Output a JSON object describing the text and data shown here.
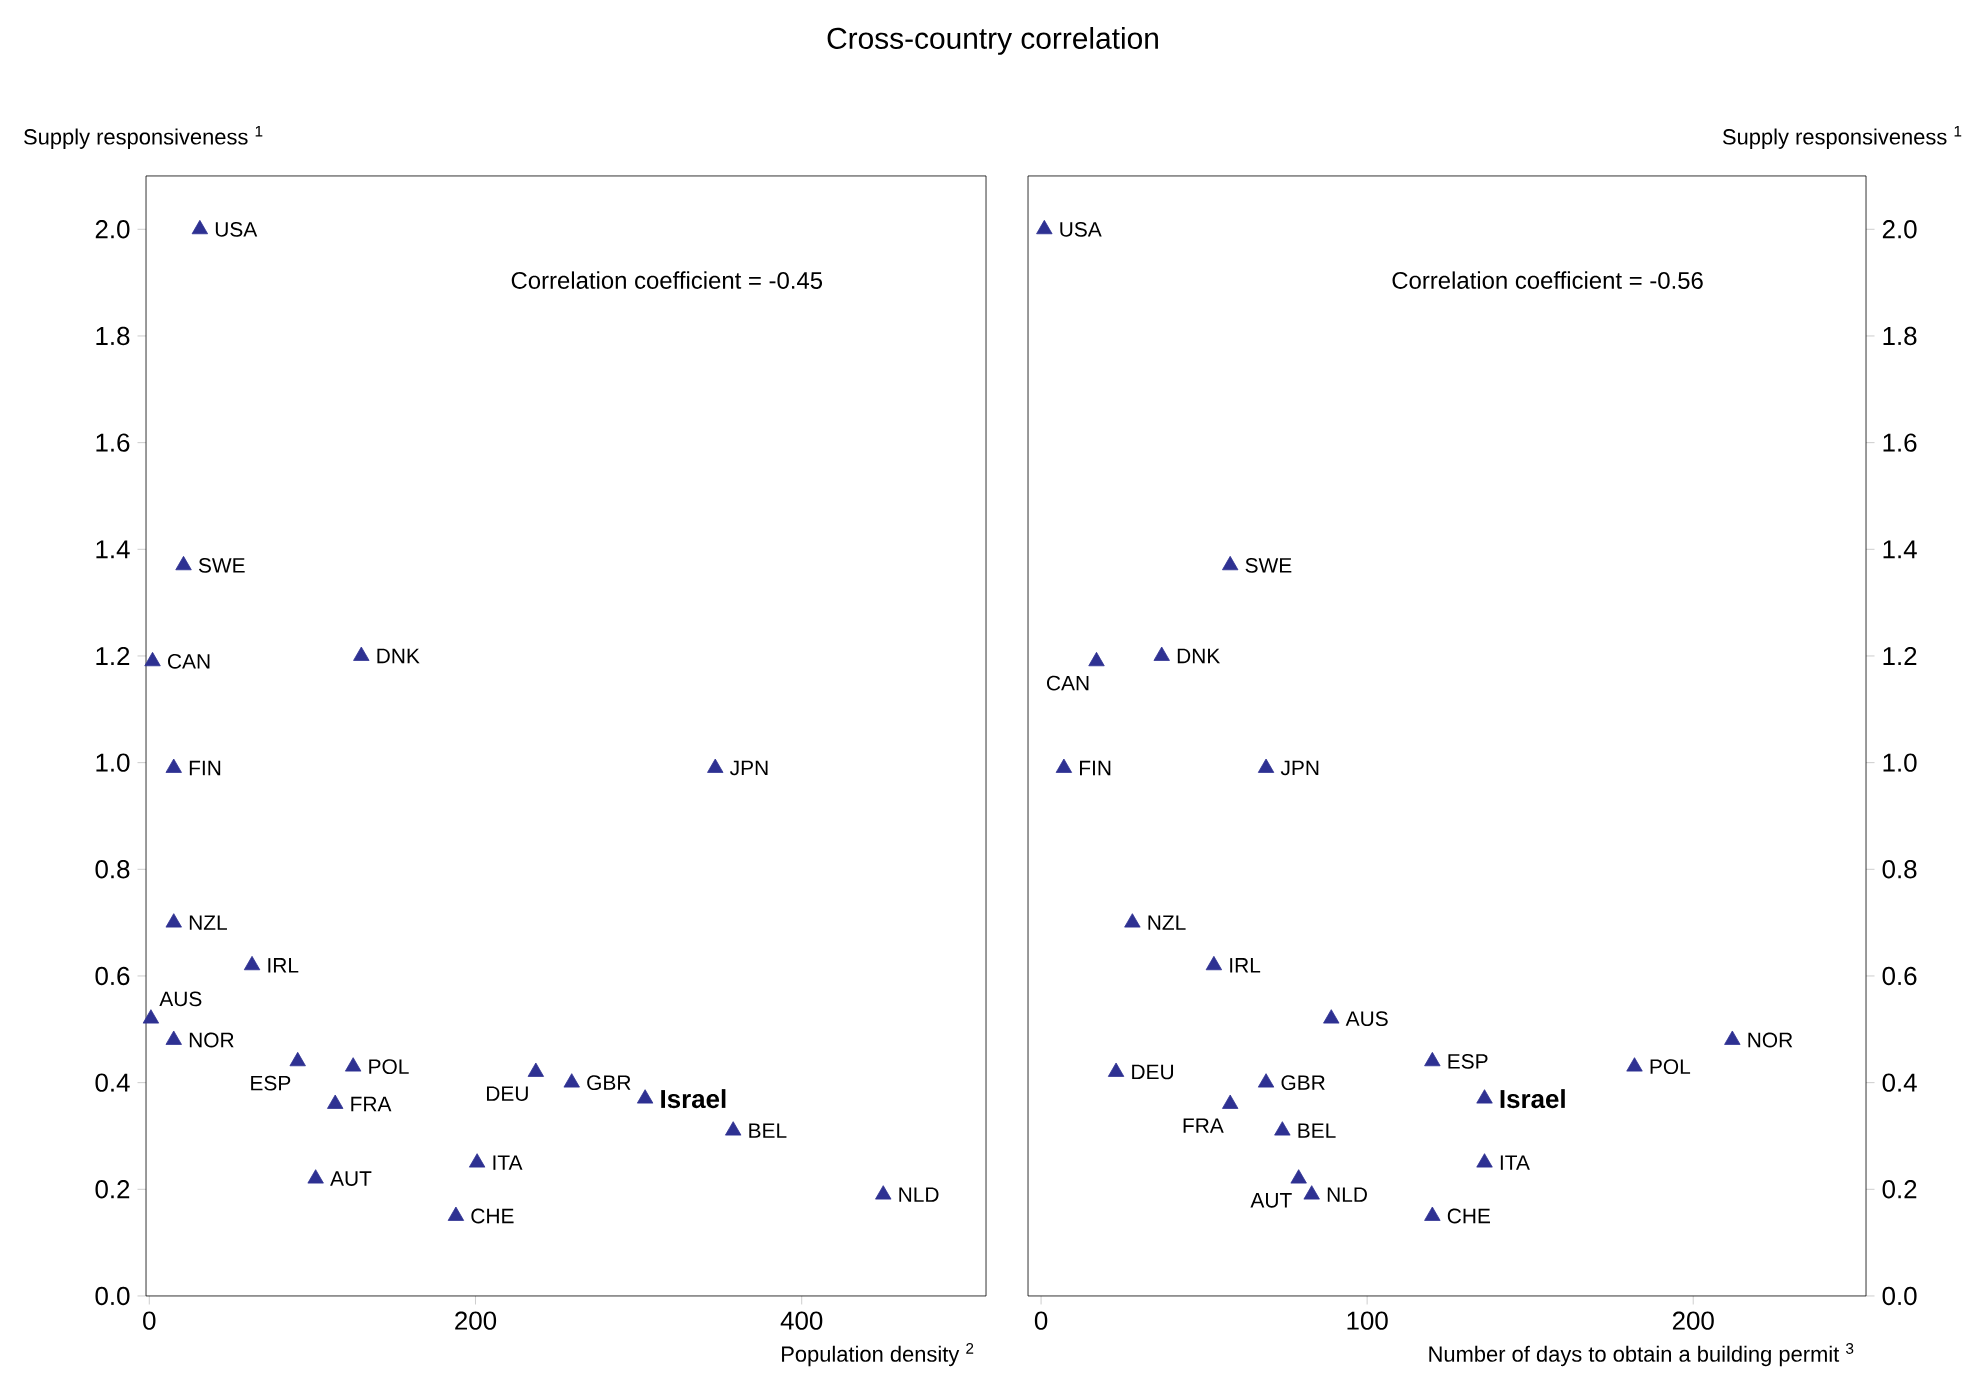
{
  "chart_data": [
    {
      "type": "scatter",
      "title": "Cross-country correlation",
      "ylabel": "Supply responsiveness $^{1}$",
      "xlabel": "Population density $^{2}$",
      "marker": "triangle",
      "xlim": [
        -2,
        513
      ],
      "ylim": [
        0,
        2.1
      ],
      "xticks": [
        0,
        200,
        400
      ],
      "yticks": [
        {
          "value": 0,
          "label": "0.0"
        },
        {
          "value": 0.2,
          "label": "0.2"
        },
        {
          "value": 0.4,
          "label": "0.4"
        },
        {
          "value": 0.6,
          "label": "0.6"
        },
        {
          "value": 0.8,
          "label": "0.8"
        },
        {
          "value": 1.0,
          "label": "1.0"
        },
        {
          "value": 1.2,
          "label": "1.2"
        },
        {
          "value": 1.4,
          "label": "1.4"
        },
        {
          "value": 1.6,
          "label": "1.6"
        },
        {
          "value": 1.8,
          "label": "1.8"
        },
        {
          "value": 2.0,
          "label": "2.0"
        }
      ],
      "series": [
        {
          "color": "#2e3192",
          "x": [
            31,
            21,
            2,
            130,
            15,
            347,
            15,
            63,
            1,
            15,
            91,
            125,
            114,
            237,
            259,
            304,
            358,
            102,
            201,
            188,
            450
          ],
          "values": [
            2.0,
            1.37,
            1.19,
            1.2,
            0.99,
            0.99,
            0.7,
            0.62,
            0.52,
            0.48,
            0.44,
            0.43,
            0.36,
            0.42,
            0.4,
            0.37,
            0.31,
            0.22,
            0.25,
            0.15,
            0.19
          ]
        }
      ],
      "annotations": [
        "Correlation coefficient = -0.45",
        {
          "text": "USA",
          "x": 31,
          "y": 2.0
        },
        {
          "text": "SWE",
          "x": 21,
          "y": 1.37
        },
        {
          "text": "CAN",
          "x": 2,
          "y": 1.19
        },
        {
          "text": "DNK",
          "x": 130,
          "y": 1.2
        },
        {
          "text": "FIN",
          "x": 15,
          "y": 0.99
        },
        {
          "text": "JPN",
          "x": 347,
          "y": 0.99
        },
        {
          "text": "NZL",
          "x": 15,
          "y": 0.7
        },
        {
          "text": "IRL",
          "x": 63,
          "y": 0.62
        },
        {
          "text": "AUS",
          "x": 1,
          "y": 0.52
        },
        {
          "text": "NOR",
          "x": 15,
          "y": 0.48
        },
        {
          "text": "ESP",
          "x": 91,
          "y": 0.44
        },
        {
          "text": "POL",
          "x": 125,
          "y": 0.43
        },
        {
          "text": "FRA",
          "x": 114,
          "y": 0.36
        },
        {
          "text": "DEU",
          "x": 237,
          "y": 0.42
        },
        {
          "text": "GBR",
          "x": 259,
          "y": 0.4
        },
        {
          "text": "**Israel**",
          "x": 304,
          "y": 0.37
        },
        {
          "text": "BEL",
          "x": 358,
          "y": 0.31
        },
        {
          "text": "AUT",
          "x": 102,
          "y": 0.22
        },
        {
          "text": "ITA",
          "x": 201,
          "y": 0.25
        },
        {
          "text": "CHE",
          "x": 188,
          "y": 0.15
        },
        {
          "text": "NLD",
          "x": 450,
          "y": 0.19
        }
      ]
    },
    {
      "type": "scatter",
      "ylabel": "Supply responsiveness $^{1}$",
      "xlabel": "Number of days to obtain a building permit $^{3}$",
      "marker": "triangle",
      "xlim": [
        -4,
        253
      ],
      "ylim": [
        0,
        2.1
      ],
      "xticks": [
        0,
        100,
        200
      ],
      "yticks": [
        {
          "value": 0,
          "label": "0.0"
        },
        {
          "value": 0.2,
          "label": "0.2"
        },
        {
          "value": 0.4,
          "label": "0.4"
        },
        {
          "value": 0.6,
          "label": "0.6"
        },
        {
          "value": 0.8,
          "label": "0.8"
        },
        {
          "value": 1.0,
          "label": "1.0"
        },
        {
          "value": 1.2,
          "label": "1.2"
        },
        {
          "value": 1.4,
          "label": "1.4"
        },
        {
          "value": 1.6,
          "label": "1.6"
        },
        {
          "value": 1.8,
          "label": "1.8"
        },
        {
          "value": 2.0,
          "label": "2.0"
        }
      ],
      "series": [
        {
          "color": "#2e3192",
          "x": [
            1,
            58,
            17,
            37,
            7,
            69,
            28,
            53,
            89,
            23,
            120,
            69,
            58,
            136,
            182,
            212,
            74,
            79,
            83,
            136,
            120
          ],
          "values": [
            2.0,
            1.37,
            1.19,
            1.2,
            0.99,
            0.99,
            0.7,
            0.62,
            0.52,
            0.42,
            0.44,
            0.4,
            0.36,
            0.37,
            0.43,
            0.48,
            0.31,
            0.22,
            0.19,
            0.25,
            0.15
          ]
        }
      ],
      "annotations": [
        "Correlation coefficient = -0.56",
        {
          "text": "USA",
          "x": 1,
          "y": 2.0
        },
        {
          "text": "SWE",
          "x": 58,
          "y": 1.37
        },
        {
          "text": "CAN",
          "x": 17,
          "y": 1.19
        },
        {
          "text": "DNK",
          "x": 37,
          "y": 1.2
        },
        {
          "text": "FIN",
          "x": 7,
          "y": 0.99
        },
        {
          "text": "JPN",
          "x": 69,
          "y": 0.99
        },
        {
          "text": "NZL",
          "x": 28,
          "y": 0.7
        },
        {
          "text": "IRL",
          "x": 53,
          "y": 0.62
        },
        {
          "text": "AUS",
          "x": 89,
          "y": 0.52
        },
        {
          "text": "DEU",
          "x": 23,
          "y": 0.42
        },
        {
          "text": "ESP",
          "x": 120,
          "y": 0.44
        },
        {
          "text": "GBR",
          "x": 69,
          "y": 0.4
        },
        {
          "text": "FRA",
          "x": 58,
          "y": 0.36
        },
        {
          "text": "**Israel**",
          "x": 136,
          "y": 0.37
        },
        {
          "text": "POL",
          "x": 182,
          "y": 0.43
        },
        {
          "text": "NOR",
          "x": 212,
          "y": 0.48
        },
        {
          "text": "BEL",
          "x": 74,
          "y": 0.31
        },
        {
          "text": "AUT",
          "x": 79,
          "y": 0.22
        },
        {
          "text": "NLD",
          "x": 83,
          "y": 0.19
        },
        {
          "text": "ITA",
          "x": 136,
          "y": 0.25
        },
        {
          "text": "CHE",
          "x": 120,
          "y": 0.15
        }
      ]
    }
  ]
}
